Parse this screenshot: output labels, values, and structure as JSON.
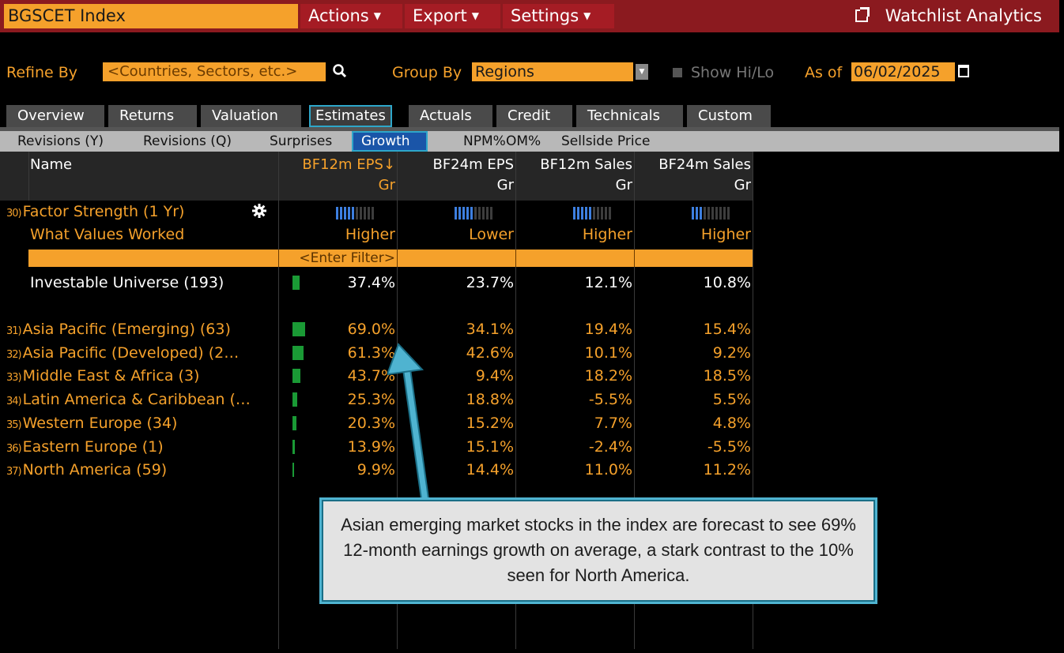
{
  "topbar": {
    "title": "BGSCET Index",
    "menus": [
      "Actions",
      "Export",
      "Settings"
    ],
    "watchlist": "Watchlist Analytics"
  },
  "refine": {
    "label": "Refine By",
    "placeholder": "<Countries, Sectors, etc.>",
    "group_label": "Group By",
    "group_value": "Regions",
    "show_hilo": "Show Hi/Lo",
    "asof_label": "As of",
    "asof_value": "06/02/2025"
  },
  "tabs": [
    "Overview",
    "Returns",
    "Valuation",
    "Estimates",
    "Actuals",
    "Credit",
    "Technicals",
    "Custom"
  ],
  "active_tab": "Estimates",
  "subtabs": [
    "Revisions (Y)",
    "Revisions (Q)",
    "Surprises",
    "Growth",
    "NPM%",
    "OM%",
    "Sellside Price"
  ],
  "active_subtab": "Growth",
  "columns": {
    "name": "Name",
    "c1": [
      "BF12m EPS↓",
      "Gr"
    ],
    "c2": [
      "BF24m EPS",
      "Gr"
    ],
    "c3": [
      "BF12m Sales",
      "Gr"
    ],
    "c4": [
      "BF24m Sales",
      "Gr"
    ]
  },
  "factor": {
    "num": "30)",
    "label": "Factor Strength (1 Yr)",
    "what_label": "What Values Worked",
    "strength": [
      5,
      5,
      5,
      3
    ],
    "worked": [
      "Higher",
      "Lower",
      "Higher",
      "Higher"
    ]
  },
  "filter_placeholder": "<Enter Filter>",
  "universe": {
    "label": "Investable Universe (193)",
    "bar_value": 37.4,
    "values": [
      "37.4%",
      "23.7%",
      "12.1%",
      "10.8%"
    ]
  },
  "rows": [
    {
      "num": "31)",
      "label": "Asia Pacific (Emerging) (63)",
      "bar": 69.0,
      "values": [
        "69.0%",
        "34.1%",
        "19.4%",
        "15.4%"
      ]
    },
    {
      "num": "32)",
      "label": "Asia Pacific (Developed) (2…",
      "bar": 61.3,
      "values": [
        "61.3%",
        "42.6%",
        "10.1%",
        "9.2%"
      ]
    },
    {
      "num": "33)",
      "label": "Middle East & Africa (3)",
      "bar": 43.7,
      "values": [
        "43.7%",
        "9.4%",
        "18.2%",
        "18.5%"
      ]
    },
    {
      "num": "34)",
      "label": "Latin America & Caribbean (…",
      "bar": 25.3,
      "values": [
        "25.3%",
        "18.8%",
        "-5.5%",
        "5.5%"
      ]
    },
    {
      "num": "35)",
      "label": "Western Europe (34)",
      "bar": 20.3,
      "values": [
        "20.3%",
        "15.2%",
        "7.7%",
        "4.8%"
      ]
    },
    {
      "num": "36)",
      "label": "Eastern Europe (1)",
      "bar": 13.9,
      "values": [
        "13.9%",
        "15.1%",
        "-2.4%",
        "-5.5%"
      ]
    },
    {
      "num": "37)",
      "label": "North America (59)",
      "bar": 9.9,
      "values": [
        "9.9%",
        "14.4%",
        "11.0%",
        "11.2%"
      ]
    }
  ],
  "callout": "Asian emerging market stocks in the index are forecast to see 69% 12-month earnings growth on average, a stark contrast to the 10% seen for North America.",
  "colors": {
    "accent": "#f5a12b",
    "topbar": "#8b1a1f",
    "bar": "#1a9a35",
    "strength_on": "#3d7fe0",
    "callout_border": "#4fb3d0"
  },
  "icons": [
    "export-window-icon",
    "search-icon",
    "dropdown-caret-icon",
    "calendar-icon",
    "gear-icon",
    "sort-down-icon"
  ]
}
